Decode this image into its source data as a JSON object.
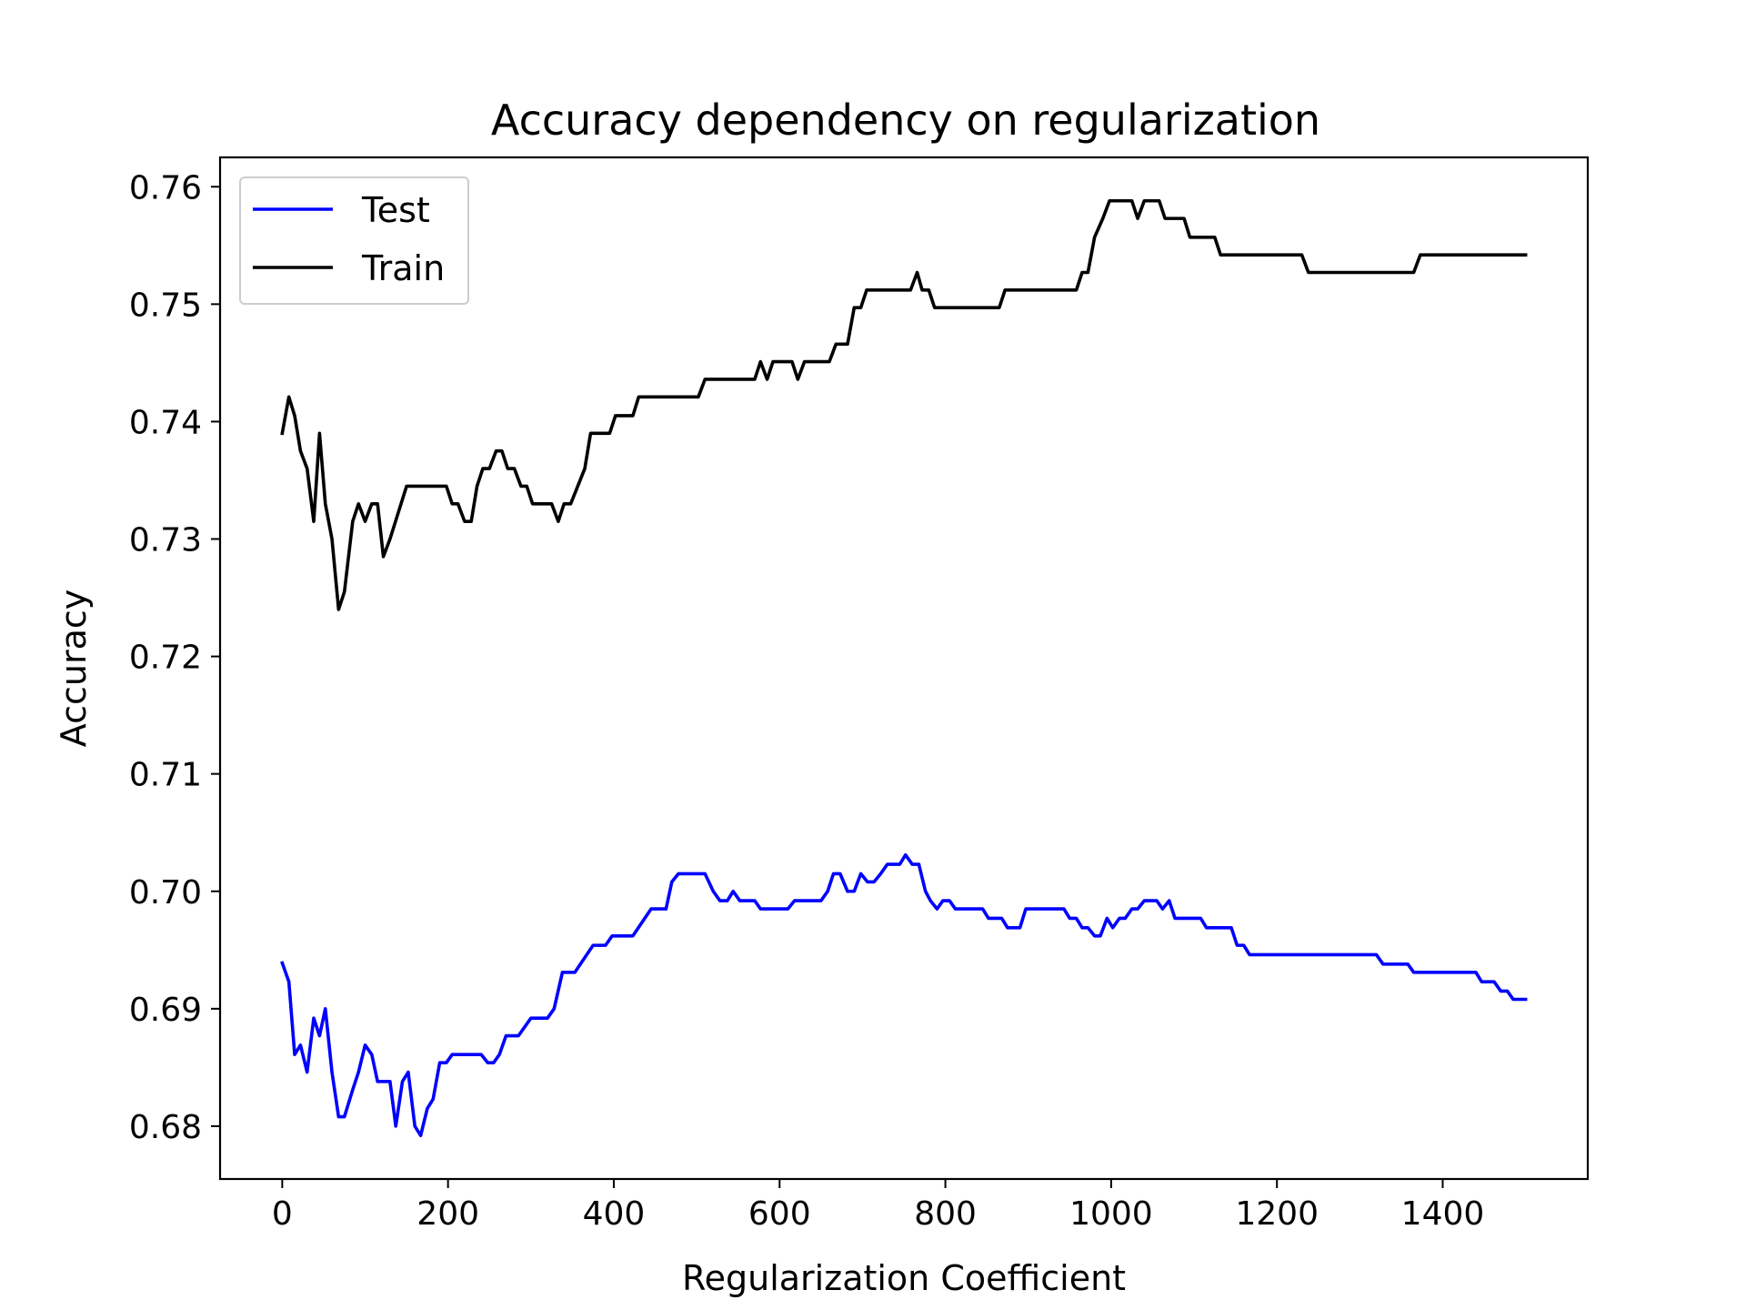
{
  "chart_data": {
    "type": "line",
    "title": "Accuracy dependency on regularization",
    "xlabel": "Regularization Coefficient",
    "ylabel": "Accuracy",
    "xlim": [
      -75,
      1575
    ],
    "ylim": [
      0.6755,
      0.7625
    ],
    "xticks": [
      0,
      200,
      400,
      600,
      800,
      1000,
      1200,
      1400
    ],
    "xtick_labels": [
      "0",
      "200",
      "400",
      "600",
      "800",
      "1000",
      "1200",
      "1400"
    ],
    "yticks": [
      0.68,
      0.69,
      0.7,
      0.71,
      0.72,
      0.73,
      0.74,
      0.75,
      0.76
    ],
    "ytick_labels": [
      "0.68",
      "0.69",
      "0.70",
      "0.71",
      "0.72",
      "0.73",
      "0.74",
      "0.75",
      "0.76"
    ],
    "grid": false,
    "legend": "upper-left",
    "series": [
      {
        "name": "Test",
        "color": "#0000ff",
        "points": [
          [
            0,
            0.6939
          ],
          [
            8,
            0.6923
          ],
          [
            15,
            0.6861
          ],
          [
            22,
            0.6869
          ],
          [
            30,
            0.6846
          ],
          [
            38,
            0.6892
          ],
          [
            45,
            0.6877
          ],
          [
            52,
            0.69
          ],
          [
            60,
            0.6846
          ],
          [
            68,
            0.6808
          ],
          [
            75,
            0.6808
          ],
          [
            85,
            0.6831
          ],
          [
            92,
            0.6846
          ],
          [
            100,
            0.6869
          ],
          [
            108,
            0.6861
          ],
          [
            115,
            0.6838
          ],
          [
            130,
            0.6838
          ],
          [
            137,
            0.68
          ],
          [
            145,
            0.6838
          ],
          [
            152,
            0.6846
          ],
          [
            160,
            0.68
          ],
          [
            167,
            0.6792
          ],
          [
            175,
            0.6815
          ],
          [
            182,
            0.6823
          ],
          [
            190,
            0.6854
          ],
          [
            198,
            0.6854
          ],
          [
            205,
            0.6861
          ],
          [
            240,
            0.6861
          ],
          [
            248,
            0.6854
          ],
          [
            255,
            0.6854
          ],
          [
            262,
            0.6861
          ],
          [
            270,
            0.6877
          ],
          [
            285,
            0.6877
          ],
          [
            300,
            0.6892
          ],
          [
            320,
            0.6892
          ],
          [
            328,
            0.69
          ],
          [
            338,
            0.6931
          ],
          [
            353,
            0.6931
          ],
          [
            375,
            0.6954
          ],
          [
            390,
            0.6954
          ],
          [
            398,
            0.6962
          ],
          [
            423,
            0.6962
          ],
          [
            445,
            0.6985
          ],
          [
            463,
            0.6985
          ],
          [
            470,
            0.7008
          ],
          [
            478,
            0.7015
          ],
          [
            510,
            0.7015
          ],
          [
            520,
            0.7
          ],
          [
            528,
            0.6992
          ],
          [
            537,
            0.6992
          ],
          [
            544,
            0.7
          ],
          [
            552,
            0.6992
          ],
          [
            570,
            0.6992
          ],
          [
            577,
            0.6985
          ],
          [
            610,
            0.6985
          ],
          [
            618,
            0.6992
          ],
          [
            650,
            0.6992
          ],
          [
            658,
            0.7
          ],
          [
            665,
            0.7015
          ],
          [
            673,
            0.7015
          ],
          [
            682,
            0.7
          ],
          [
            690,
            0.7
          ],
          [
            698,
            0.7015
          ],
          [
            706,
            0.7008
          ],
          [
            714,
            0.7008
          ],
          [
            722,
            0.7015
          ],
          [
            730,
            0.7023
          ],
          [
            745,
            0.7023
          ],
          [
            752,
            0.7031
          ],
          [
            760,
            0.7023
          ],
          [
            768,
            0.7023
          ],
          [
            776,
            0.7
          ],
          [
            782,
            0.6992
          ],
          [
            790,
            0.6985
          ],
          [
            797,
            0.6992
          ],
          [
            805,
            0.6992
          ],
          [
            812,
            0.6985
          ],
          [
            845,
            0.6985
          ],
          [
            852,
            0.6977
          ],
          [
            868,
            0.6977
          ],
          [
            875,
            0.6969
          ],
          [
            890,
            0.6969
          ],
          [
            897,
            0.6985
          ],
          [
            943,
            0.6985
          ],
          [
            950,
            0.6977
          ],
          [
            958,
            0.6977
          ],
          [
            965,
            0.6969
          ],
          [
            972,
            0.6969
          ],
          [
            980,
            0.6962
          ],
          [
            987,
            0.6962
          ],
          [
            995,
            0.6977
          ],
          [
            1002,
            0.6969
          ],
          [
            1010,
            0.6977
          ],
          [
            1017,
            0.6977
          ],
          [
            1025,
            0.6985
          ],
          [
            1032,
            0.6985
          ],
          [
            1040,
            0.6992
          ],
          [
            1055,
            0.6992
          ],
          [
            1062,
            0.6985
          ],
          [
            1070,
            0.6992
          ],
          [
            1077,
            0.6977
          ],
          [
            1108,
            0.6977
          ],
          [
            1115,
            0.6969
          ],
          [
            1145,
            0.6969
          ],
          [
            1152,
            0.6954
          ],
          [
            1160,
            0.6954
          ],
          [
            1167,
            0.6946
          ],
          [
            1320,
            0.6946
          ],
          [
            1328,
            0.6938
          ],
          [
            1358,
            0.6938
          ],
          [
            1365,
            0.6931
          ],
          [
            1440,
            0.6931
          ],
          [
            1447,
            0.6923
          ],
          [
            1462,
            0.6923
          ],
          [
            1470,
            0.6915
          ],
          [
            1478,
            0.6915
          ],
          [
            1485,
            0.6908
          ],
          [
            1500,
            0.6908
          ]
        ]
      },
      {
        "name": "Train",
        "color": "#000000",
        "points": [
          [
            0,
            0.739
          ],
          [
            8,
            0.7421
          ],
          [
            15,
            0.7405
          ],
          [
            22,
            0.7375
          ],
          [
            30,
            0.736
          ],
          [
            38,
            0.7315
          ],
          [
            45,
            0.739
          ],
          [
            52,
            0.733
          ],
          [
            60,
            0.73
          ],
          [
            68,
            0.724
          ],
          [
            75,
            0.7255
          ],
          [
            85,
            0.7315
          ],
          [
            92,
            0.733
          ],
          [
            100,
            0.7315
          ],
          [
            108,
            0.733
          ],
          [
            115,
            0.733
          ],
          [
            122,
            0.7285
          ],
          [
            130,
            0.73
          ],
          [
            150,
            0.7345
          ],
          [
            198,
            0.7345
          ],
          [
            205,
            0.733
          ],
          [
            212,
            0.733
          ],
          [
            220,
            0.7315
          ],
          [
            228,
            0.7315
          ],
          [
            235,
            0.7345
          ],
          [
            242,
            0.736
          ],
          [
            250,
            0.736
          ],
          [
            258,
            0.7375
          ],
          [
            265,
            0.7375
          ],
          [
            272,
            0.736
          ],
          [
            280,
            0.736
          ],
          [
            288,
            0.7345
          ],
          [
            295,
            0.7345
          ],
          [
            302,
            0.733
          ],
          [
            325,
            0.733
          ],
          [
            333,
            0.7315
          ],
          [
            340,
            0.733
          ],
          [
            348,
            0.733
          ],
          [
            365,
            0.736
          ],
          [
            372,
            0.739
          ],
          [
            395,
            0.739
          ],
          [
            402,
            0.7405
          ],
          [
            423,
            0.7405
          ],
          [
            430,
            0.7421
          ],
          [
            502,
            0.7421
          ],
          [
            510,
            0.7436
          ],
          [
            570,
            0.7436
          ],
          [
            577,
            0.7451
          ],
          [
            585,
            0.7436
          ],
          [
            592,
            0.7451
          ],
          [
            615,
            0.7451
          ],
          [
            622,
            0.7436
          ],
          [
            630,
            0.7451
          ],
          [
            660,
            0.7451
          ],
          [
            668,
            0.7466
          ],
          [
            682,
            0.7466
          ],
          [
            690,
            0.7497
          ],
          [
            698,
            0.7497
          ],
          [
            705,
            0.7512
          ],
          [
            758,
            0.7512
          ],
          [
            766,
            0.7527
          ],
          [
            772,
            0.7512
          ],
          [
            780,
            0.7512
          ],
          [
            787,
            0.7497
          ],
          [
            865,
            0.7497
          ],
          [
            872,
            0.7512
          ],
          [
            958,
            0.7512
          ],
          [
            965,
            0.7527
          ],
          [
            972,
            0.7527
          ],
          [
            980,
            0.7557
          ],
          [
            990,
            0.7573
          ],
          [
            998,
            0.7588
          ],
          [
            1025,
            0.7588
          ],
          [
            1032,
            0.7573
          ],
          [
            1040,
            0.7588
          ],
          [
            1058,
            0.7588
          ],
          [
            1065,
            0.7573
          ],
          [
            1088,
            0.7573
          ],
          [
            1095,
            0.7557
          ],
          [
            1125,
            0.7557
          ],
          [
            1132,
            0.7542
          ],
          [
            1230,
            0.7542
          ],
          [
            1238,
            0.7527
          ],
          [
            1365,
            0.7527
          ],
          [
            1373,
            0.7542
          ],
          [
            1500,
            0.7542
          ]
        ]
      }
    ]
  }
}
